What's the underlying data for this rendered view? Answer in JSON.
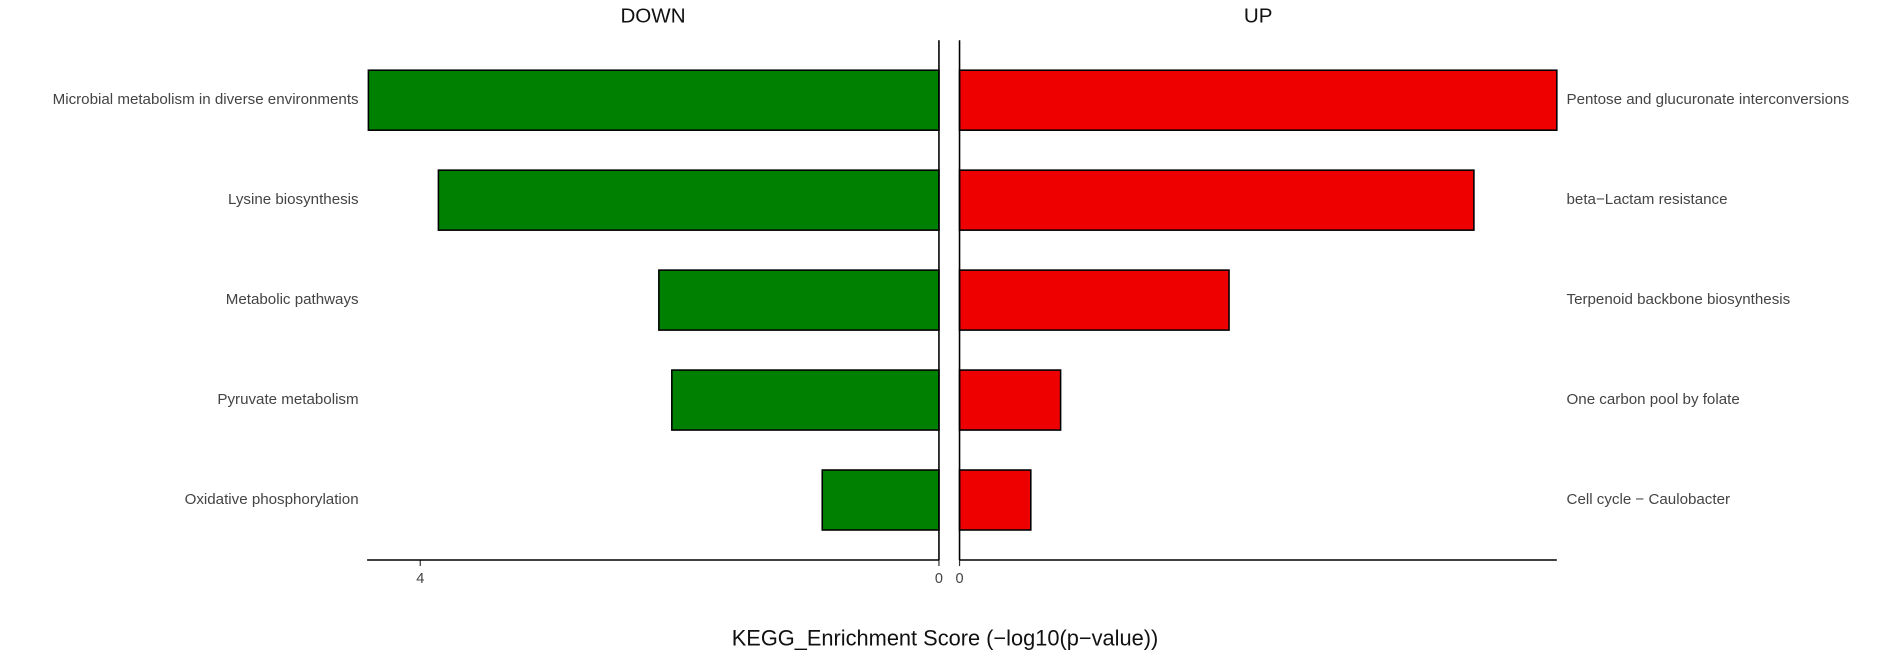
{
  "chart_data": [
    {
      "type": "bar",
      "orientation": "horizontal",
      "reversed": true,
      "title": "DOWN",
      "categories": [
        "Microbial metabolism in diverse environments",
        "Lysine biosynthesis",
        "Metabolic pathways",
        "Pyruvate metabolism",
        "Oxidative phosphorylation"
      ],
      "values": [
        4.4,
        3.86,
        2.16,
        2.06,
        0.9
      ],
      "color": "#008000",
      "xlim": [
        0,
        4.41
      ],
      "xticks": [
        0,
        4
      ]
    },
    {
      "type": "bar",
      "orientation": "horizontal",
      "reversed": false,
      "title": "UP",
      "categories": [
        "Pentose and glucuronate interconversions",
        "beta−Lactam resistance",
        "Terpenoid backbone biosynthesis",
        "One carbon pool by folate",
        "Cell cycle − Caulobacter"
      ],
      "values": [
        4.61,
        3.97,
        2.08,
        0.78,
        0.55
      ],
      "color": "#ee0000",
      "xlim": [
        0,
        4.61
      ],
      "xticks": [
        0
      ]
    }
  ],
  "axis_title": "KEGG_Enrichment Score (−log10(p−value))"
}
